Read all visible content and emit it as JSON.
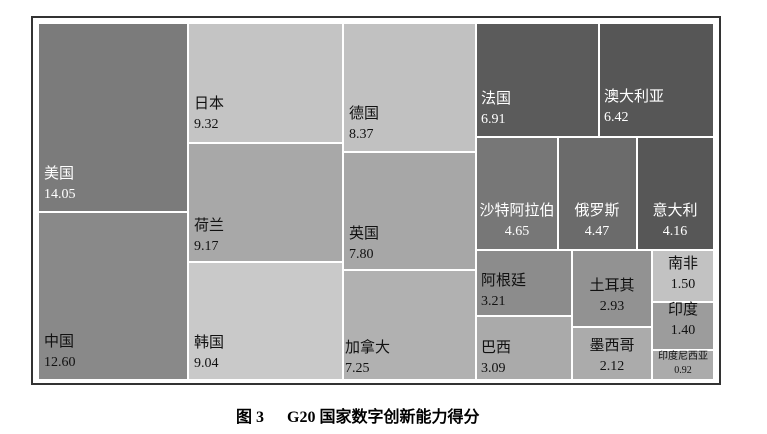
{
  "chart_data": {
    "type": "treemap",
    "figure_label": "图 3",
    "title": "G20 国家数字创新能力得分",
    "categories": [
      "美国",
      "中国",
      "日本",
      "荷兰",
      "韩国",
      "德国",
      "英国",
      "加拿大",
      "法国",
      "澳大利亚",
      "沙特阿拉伯",
      "俄罗斯",
      "意大利",
      "阿根廷",
      "巴西",
      "土耳其",
      "墨西哥",
      "南非",
      "印度",
      "印度尼西亚"
    ],
    "values": [
      14.05,
      12.6,
      9.32,
      9.17,
      9.04,
      8.37,
      7.8,
      7.25,
      6.91,
      6.42,
      4.65,
      4.47,
      4.16,
      3.21,
      3.09,
      2.93,
      2.12,
      1.5,
      1.4,
      0.92
    ],
    "value_labels": [
      "14.05",
      "12.60",
      "9.32",
      "9.17",
      "9.04",
      "8.37",
      "7.80",
      "7.25",
      "6.91",
      "6.42",
      "4.65",
      "4.47",
      "4.16",
      "3.21",
      "3.09",
      "2.93",
      "2.12",
      "1.50",
      "1.40",
      "0.92"
    ],
    "colors": [
      "#7b7b7b",
      "#898989",
      "#c4c4c4",
      "#a8a8a8",
      "#c9c9c9",
      "#c1c1c1",
      "#a7a7a7",
      "#b1b1b1",
      "#5b5b5b",
      "#565656",
      "#777777",
      "#6b6b6b",
      "#575757",
      "#8c8c8c",
      "#aaaaaa",
      "#929292",
      "#ababab",
      "#c2c2c2",
      "#9c9c9c",
      "#ababab"
    ]
  }
}
